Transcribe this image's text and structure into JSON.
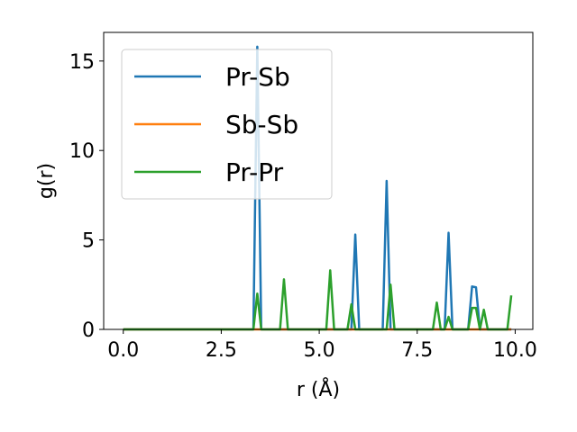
{
  "chart_data": {
    "type": "line",
    "xlabel": "r (Å)",
    "ylabel": "g(r)",
    "xlim": [
      -0.5,
      10.45
    ],
    "ylim": [
      0,
      16.6
    ],
    "xticks": [
      0.0,
      2.5,
      5.0,
      7.5,
      10.0
    ],
    "xtick_labels": [
      "0.0",
      "2.5",
      "5.0",
      "7.5",
      "10.0"
    ],
    "yticks": [
      0,
      5,
      10,
      15
    ],
    "ytick_labels": [
      "0",
      "5",
      "10",
      "15"
    ],
    "grid": false,
    "legend_position": "upper-left",
    "series": [
      {
        "name": "Pr-Sb",
        "color": "#1f77b4",
        "x": [
          0.0,
          3.32,
          3.42,
          3.52,
          5.82,
          5.92,
          6.02,
          6.62,
          6.72,
          6.82,
          8.2,
          8.3,
          8.4,
          8.8,
          8.9,
          9.0,
          9.1,
          9.9
        ],
        "y": [
          0,
          0,
          15.8,
          0,
          0,
          5.3,
          0,
          0,
          8.3,
          0,
          0,
          5.4,
          0,
          0,
          2.4,
          2.35,
          0,
          0
        ]
      },
      {
        "name": "Sb-Sb",
        "color": "#ff7f0e",
        "x": [
          0.0,
          9.9
        ],
        "y": [
          0,
          0
        ]
      },
      {
        "name": "Pr-Pr",
        "color": "#2ca02c",
        "x": [
          0.0,
          3.32,
          3.42,
          3.52,
          4.0,
          4.1,
          4.2,
          5.18,
          5.28,
          5.38,
          5.72,
          5.82,
          5.92,
          6.72,
          6.82,
          6.92,
          7.9,
          8.0,
          8.1,
          8.2,
          8.3,
          8.4,
          8.8,
          8.9,
          9.0,
          9.1,
          9.2,
          9.3,
          9.8,
          9.9
        ],
        "y": [
          0,
          0,
          2.0,
          0,
          0,
          2.8,
          0,
          0,
          3.3,
          0,
          0,
          1.4,
          0,
          0,
          2.5,
          0,
          0,
          1.5,
          0,
          0,
          0.7,
          0,
          0,
          1.2,
          1.2,
          0,
          1.1,
          0,
          0,
          1.9
        ]
      }
    ]
  }
}
